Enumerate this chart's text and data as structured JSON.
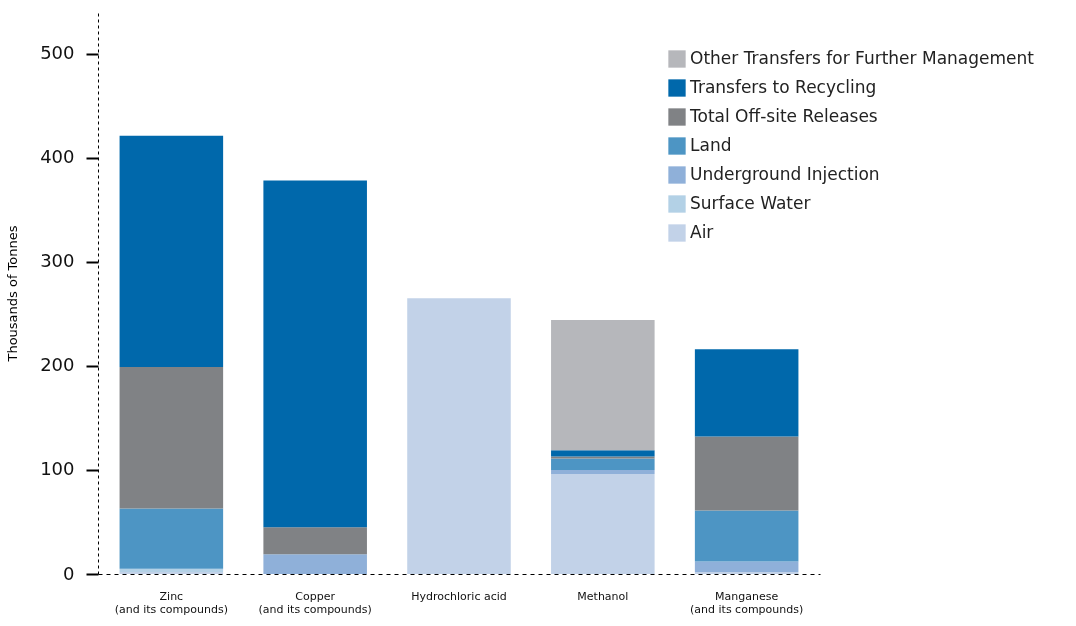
{
  "chart_data": {
    "type": "bar",
    "stacked": true,
    "ylabel": "Thousands of Tonnes",
    "categories": [
      "Zinc\n(and its compounds)",
      "Copper\n(and its compounds)",
      "Hydrochloric acid",
      "Methanol",
      "Manganese\n(and its compounds)"
    ],
    "series": [
      {
        "name": "Air",
        "color": "#c2d2e8",
        "values": [
          2,
          0,
          265,
          96,
          2
        ]
      },
      {
        "name": "Surface Water",
        "color": "#b3d1e6",
        "values": [
          3,
          0,
          0,
          0,
          0
        ]
      },
      {
        "name": "Underground Injection",
        "color": "#8fb0d9",
        "values": [
          0,
          19,
          0,
          4,
          10
        ]
      },
      {
        "name": "Land",
        "color": "#4d95c4",
        "values": [
          58,
          0,
          0,
          11,
          49
        ]
      },
      {
        "name": "Total Off-site Releases",
        "color": "#808285",
        "values": [
          136,
          26,
          0,
          2,
          71
        ]
      },
      {
        "name": "Transfers to Recycling",
        "color": "#0068ab",
        "values": [
          222,
          333,
          0,
          6,
          84
        ]
      },
      {
        "name": "Other Transfers for Further Management",
        "color": "#b6b7bb",
        "values": [
          0,
          0,
          0,
          125,
          0
        ]
      }
    ],
    "ylim": [
      0,
      540
    ],
    "yticks": [
      0,
      100,
      200,
      300,
      400,
      500
    ],
    "grid": false,
    "legend": "top right"
  }
}
